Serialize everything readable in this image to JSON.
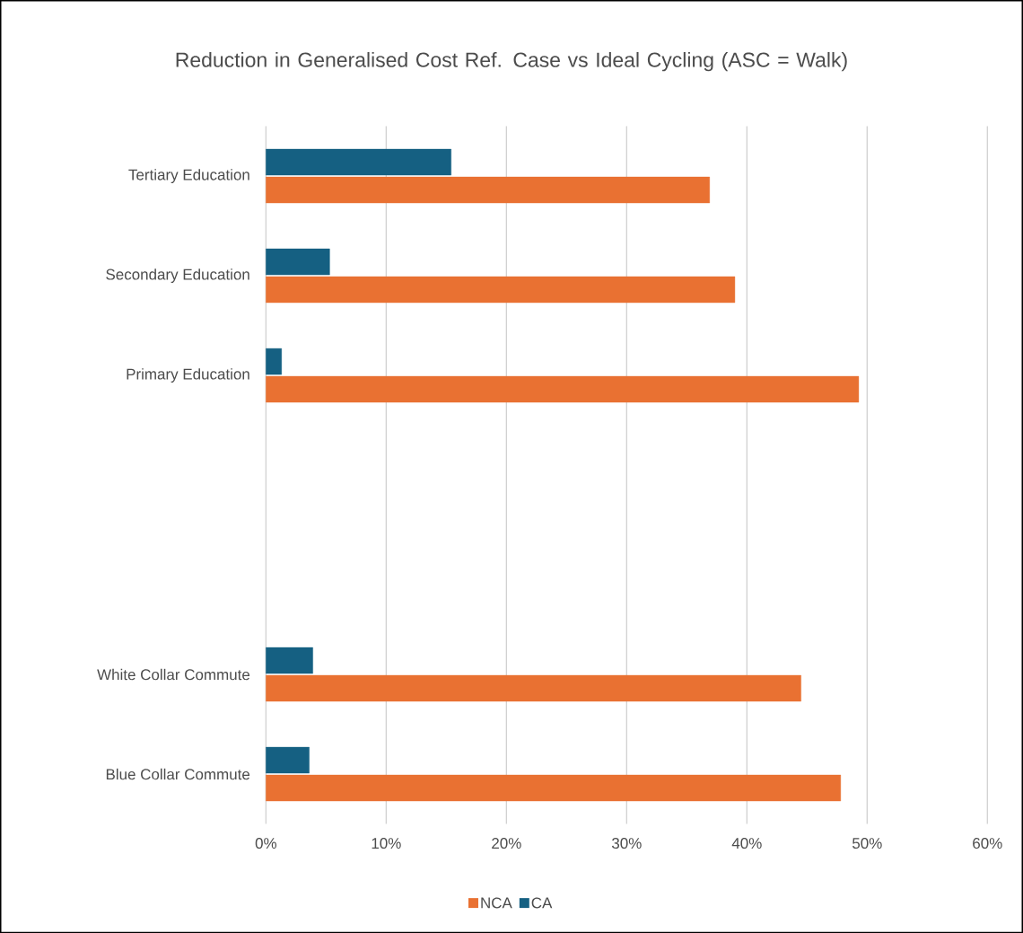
{
  "chart_data": {
    "type": "bar",
    "orientation": "horizontal",
    "title": "Reduction in Generalised Cost Ref. Case vs Ideal Cycling (ASC = Walk)",
    "categories": [
      "Tertiary Education",
      "Secondary Education",
      "Primary Education",
      null,
      null,
      "White Collar Commute",
      "Blue Collar Commute"
    ],
    "series": [
      {
        "name": "NCA",
        "color": "#e97132",
        "values": [
          36.9,
          39.0,
          49.3,
          null,
          null,
          44.5,
          47.8
        ]
      },
      {
        "name": "CA",
        "color": "#156082",
        "values": [
          15.4,
          5.3,
          1.3,
          null,
          null,
          3.9,
          3.6
        ]
      }
    ],
    "xlim": [
      0,
      60
    ],
    "xticks": [
      {
        "value": 0,
        "label": "0%"
      },
      {
        "value": 10,
        "label": "10%"
      },
      {
        "value": 20,
        "label": "20%"
      },
      {
        "value": 30,
        "label": "30%"
      },
      {
        "value": 40,
        "label": "40%"
      },
      {
        "value": 50,
        "label": "50%"
      },
      {
        "value": 60,
        "label": "60%"
      }
    ],
    "grid": "x",
    "legend": "bottom"
  }
}
